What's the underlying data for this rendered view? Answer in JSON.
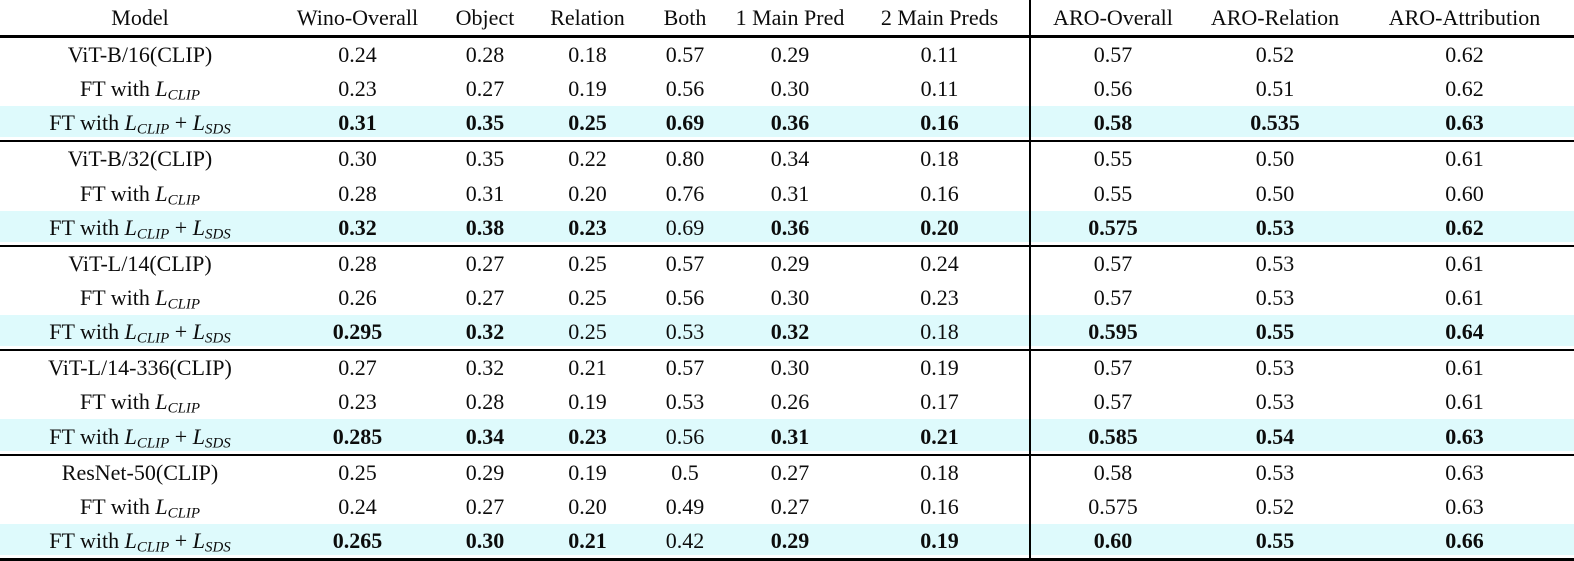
{
  "table": {
    "highlight_color": "#defafc",
    "rule_color": "#000000",
    "text_color": "#0c0c0c",
    "math_joiner": " + ",
    "columns": [
      {
        "label": "Model",
        "bold": false
      },
      {
        "label": "Wino-Overall",
        "bold": true
      },
      {
        "label": "Object",
        "bold": false
      },
      {
        "label": "Relation",
        "bold": false
      },
      {
        "label": "Both",
        "bold": false
      },
      {
        "label": "1 Main Pred",
        "bold": false
      },
      {
        "label": "2 Main Preds",
        "bold": false
      },
      {
        "label": "ARO-Overall",
        "bold": true
      },
      {
        "label": "ARO-Relation",
        "bold": false
      },
      {
        "label": "ARO-Attribution",
        "bold": false
      }
    ],
    "groups": [
      {
        "rows": [
          {
            "label": {
              "kind": "plain",
              "text": "ViT-B/16(CLIP)"
            },
            "highlight": false,
            "values": [
              "0.24",
              "0.28",
              "0.18",
              "0.57",
              "0.29",
              "0.11",
              "0.57",
              "0.52",
              "0.62"
            ],
            "bold": [
              false,
              false,
              false,
              false,
              false,
              false,
              false,
              false,
              false
            ]
          },
          {
            "label": {
              "kind": "math",
              "prefix": "FT with ",
              "terms": [
                {
                  "base": "L",
                  "sub": "CLIP"
                }
              ]
            },
            "highlight": false,
            "values": [
              "0.23",
              "0.27",
              "0.19",
              "0.56",
              "0.30",
              "0.11",
              "0.56",
              "0.51",
              "0.62"
            ],
            "bold": [
              false,
              false,
              false,
              false,
              false,
              false,
              false,
              false,
              false
            ]
          },
          {
            "label": {
              "kind": "math",
              "prefix": "FT with ",
              "terms": [
                {
                  "base": "L",
                  "sub": "CLIP"
                },
                {
                  "base": "L",
                  "sub": "SDS"
                }
              ]
            },
            "highlight": true,
            "values": [
              "0.31",
              "0.35",
              "0.25",
              "0.69",
              "0.36",
              "0.16",
              "0.58",
              "0.535",
              "0.63"
            ],
            "bold": [
              true,
              true,
              true,
              true,
              true,
              true,
              true,
              true,
              true
            ]
          }
        ]
      },
      {
        "rows": [
          {
            "label": {
              "kind": "plain",
              "text": "ViT-B/32(CLIP)"
            },
            "highlight": false,
            "values": [
              "0.30",
              "0.35",
              "0.22",
              "0.80",
              "0.34",
              "0.18",
              "0.55",
              "0.50",
              "0.61"
            ],
            "bold": [
              false,
              false,
              false,
              false,
              false,
              false,
              false,
              false,
              false
            ]
          },
          {
            "label": {
              "kind": "math",
              "prefix": "FT with ",
              "terms": [
                {
                  "base": "L",
                  "sub": "CLIP"
                }
              ]
            },
            "highlight": false,
            "values": [
              "0.28",
              "0.31",
              "0.20",
              "0.76",
              "0.31",
              "0.16",
              "0.55",
              "0.50",
              "0.60"
            ],
            "bold": [
              false,
              false,
              false,
              false,
              false,
              false,
              false,
              false,
              false
            ]
          },
          {
            "label": {
              "kind": "math",
              "prefix": "FT with ",
              "terms": [
                {
                  "base": "L",
                  "sub": "CLIP"
                },
                {
                  "base": "L",
                  "sub": "SDS"
                }
              ]
            },
            "highlight": true,
            "values": [
              "0.32",
              "0.38",
              "0.23",
              "0.69",
              "0.36",
              "0.20",
              "0.575",
              "0.53",
              "0.62"
            ],
            "bold": [
              true,
              true,
              true,
              false,
              true,
              true,
              true,
              true,
              true
            ]
          }
        ]
      },
      {
        "rows": [
          {
            "label": {
              "kind": "plain",
              "text": "ViT-L/14(CLIP)"
            },
            "highlight": false,
            "values": [
              "0.28",
              "0.27",
              "0.25",
              "0.57",
              "0.29",
              "0.24",
              "0.57",
              "0.53",
              "0.61"
            ],
            "bold": [
              false,
              false,
              false,
              false,
              false,
              false,
              false,
              false,
              false
            ]
          },
          {
            "label": {
              "kind": "math",
              "prefix": "FT with ",
              "terms": [
                {
                  "base": "L",
                  "sub": "CLIP"
                }
              ]
            },
            "highlight": false,
            "values": [
              "0.26",
              "0.27",
              "0.25",
              "0.56",
              "0.30",
              "0.23",
              "0.57",
              "0.53",
              "0.61"
            ],
            "bold": [
              false,
              false,
              false,
              false,
              false,
              false,
              false,
              false,
              false
            ]
          },
          {
            "label": {
              "kind": "math",
              "prefix": "FT with ",
              "terms": [
                {
                  "base": "L",
                  "sub": "CLIP"
                },
                {
                  "base": "L",
                  "sub": "SDS"
                }
              ]
            },
            "highlight": true,
            "values": [
              "0.295",
              "0.32",
              "0.25",
              "0.53",
              "0.32",
              "0.18",
              "0.595",
              "0.55",
              "0.64"
            ],
            "bold": [
              true,
              true,
              false,
              false,
              true,
              false,
              true,
              true,
              true
            ]
          }
        ]
      },
      {
        "rows": [
          {
            "label": {
              "kind": "plain",
              "text": "ViT-L/14-336(CLIP)"
            },
            "highlight": false,
            "values": [
              "0.27",
              "0.32",
              "0.21",
              "0.57",
              "0.30",
              "0.19",
              "0.57",
              "0.53",
              "0.61"
            ],
            "bold": [
              false,
              false,
              false,
              false,
              false,
              false,
              false,
              false,
              false
            ]
          },
          {
            "label": {
              "kind": "math",
              "prefix": "FT with ",
              "terms": [
                {
                  "base": "L",
                  "sub": "CLIP"
                }
              ]
            },
            "highlight": false,
            "values": [
              "0.23",
              "0.28",
              "0.19",
              "0.53",
              "0.26",
              "0.17",
              "0.57",
              "0.53",
              "0.61"
            ],
            "bold": [
              false,
              false,
              false,
              false,
              false,
              false,
              false,
              false,
              false
            ]
          },
          {
            "label": {
              "kind": "math",
              "prefix": "FT with ",
              "terms": [
                {
                  "base": "L",
                  "sub": "CLIP"
                },
                {
                  "base": "L",
                  "sub": "SDS"
                }
              ]
            },
            "highlight": true,
            "values": [
              "0.285",
              "0.34",
              "0.23",
              "0.56",
              "0.31",
              "0.21",
              "0.585",
              "0.54",
              "0.63"
            ],
            "bold": [
              true,
              true,
              true,
              false,
              true,
              true,
              true,
              true,
              true
            ]
          }
        ]
      },
      {
        "rows": [
          {
            "label": {
              "kind": "plain",
              "text": "ResNet-50(CLIP)"
            },
            "highlight": false,
            "values": [
              "0.25",
              "0.29",
              "0.19",
              "0.5",
              "0.27",
              "0.18",
              "0.58",
              "0.53",
              "0.63"
            ],
            "bold": [
              false,
              false,
              false,
              false,
              false,
              false,
              false,
              false,
              false
            ]
          },
          {
            "label": {
              "kind": "math",
              "prefix": "FT with ",
              "terms": [
                {
                  "base": "L",
                  "sub": "CLIP"
                }
              ]
            },
            "highlight": false,
            "values": [
              "0.24",
              "0.27",
              "0.20",
              "0.49",
              "0.27",
              "0.16",
              "0.575",
              "0.52",
              "0.63"
            ],
            "bold": [
              false,
              false,
              false,
              false,
              false,
              false,
              false,
              false,
              false
            ]
          },
          {
            "label": {
              "kind": "math",
              "prefix": "FT with ",
              "terms": [
                {
                  "base": "L",
                  "sub": "CLIP"
                },
                {
                  "base": "L",
                  "sub": "SDS"
                }
              ]
            },
            "highlight": true,
            "values": [
              "0.265",
              "0.30",
              "0.21",
              "0.42",
              "0.29",
              "0.19",
              "0.60",
              "0.55",
              "0.66"
            ],
            "bold": [
              true,
              true,
              true,
              false,
              true,
              true,
              true,
              true,
              true
            ]
          }
        ]
      }
    ]
  }
}
